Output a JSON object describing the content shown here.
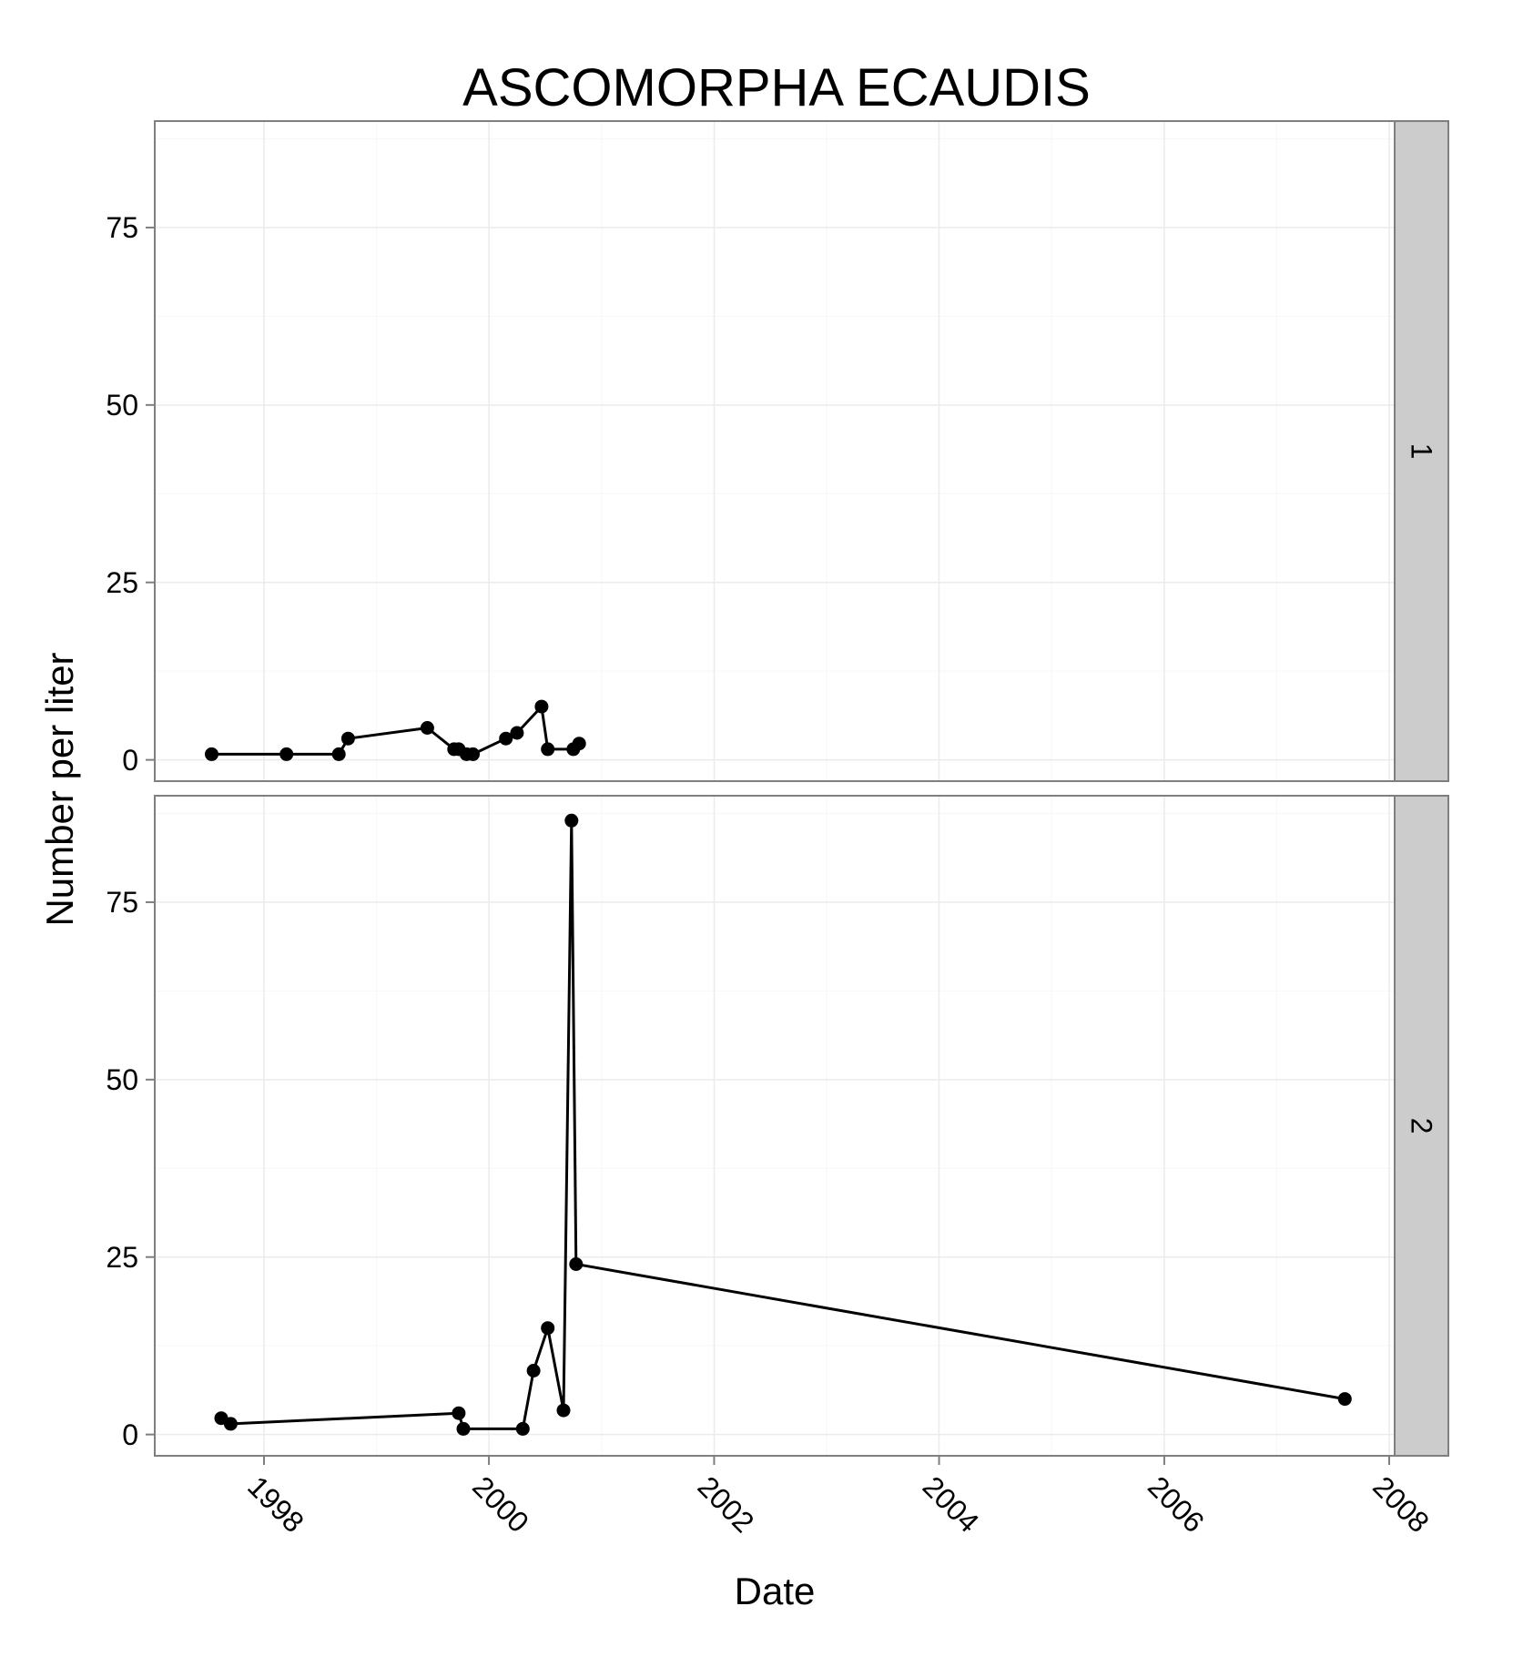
{
  "chart_data": {
    "type": "line",
    "title": "ASCOMORPHA ECAUDIS",
    "xlabel": "Date",
    "ylabel": "Number per liter",
    "x_axis": {
      "scale": "time",
      "range": [
        "1997-01-01",
        "2008-01-01"
      ],
      "ticks": [
        "1998",
        "2000",
        "2002",
        "2004",
        "2006",
        "2008"
      ],
      "tick_dates": [
        "1998-01-01",
        "2000-01-01",
        "2002-01-01",
        "2004-01-01",
        "2006-01-01",
        "2008-01-01"
      ]
    },
    "y_axis": {
      "range": [
        -3,
        90
      ],
      "ticks": [
        "0",
        "25",
        "50",
        "75"
      ],
      "tick_values": [
        0,
        25,
        50,
        75
      ]
    },
    "grid": true,
    "facets": [
      {
        "label": "1",
        "points": [
          {
            "date": "1997-07-15",
            "value": 0.8
          },
          {
            "date": "1998-03-15",
            "value": 0.8
          },
          {
            "date": "1998-09-01",
            "value": 0.8
          },
          {
            "date": "1998-10-01",
            "value": 3.0
          },
          {
            "date": "1999-06-15",
            "value": 4.5
          },
          {
            "date": "1999-09-10",
            "value": 1.5
          },
          {
            "date": "1999-09-25",
            "value": 1.5
          },
          {
            "date": "1999-10-20",
            "value": 0.8
          },
          {
            "date": "1999-11-10",
            "value": 0.8
          },
          {
            "date": "2000-02-25",
            "value": 3.0
          },
          {
            "date": "2000-04-01",
            "value": 3.8
          },
          {
            "date": "2000-06-20",
            "value": 7.5
          },
          {
            "date": "2000-07-10",
            "value": 1.5
          },
          {
            "date": "2000-10-01",
            "value": 1.5
          },
          {
            "date": "2000-10-20",
            "value": 2.3
          }
        ]
      },
      {
        "label": "2",
        "points": [
          {
            "date": "1997-08-15",
            "value": 2.3
          },
          {
            "date": "1997-09-15",
            "value": 1.5
          },
          {
            "date": "1999-09-25",
            "value": 3.0
          },
          {
            "date": "1999-10-10",
            "value": 0.8
          },
          {
            "date": "2000-04-20",
            "value": 0.8
          },
          {
            "date": "2000-05-25",
            "value": 9.0
          },
          {
            "date": "2000-07-10",
            "value": 15.0
          },
          {
            "date": "2000-08-30",
            "value": 3.4
          },
          {
            "date": "2000-09-25",
            "value": 86.5
          },
          {
            "date": "2000-10-10",
            "value": 24.0
          },
          {
            "date": "2007-08-10",
            "value": 5.0
          }
        ]
      }
    ]
  }
}
